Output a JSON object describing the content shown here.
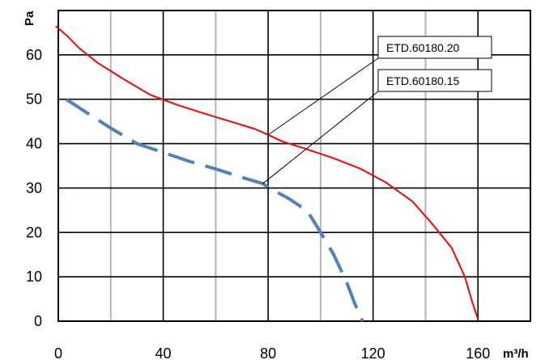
{
  "chart_data": {
    "type": "line",
    "xlabel": "m³/h",
    "ylabel": "Pa",
    "xlim": [
      0,
      180
    ],
    "ylim": [
      0,
      70
    ],
    "x_ticks": [
      0,
      40,
      80,
      120,
      160
    ],
    "y_ticks": [
      0,
      10,
      20,
      30,
      40,
      50,
      60
    ],
    "x_minor_ticks": [
      20,
      60,
      100,
      140
    ],
    "grid": true,
    "series": [
      {
        "name": "ETD.60180.20",
        "color": "#ff0000",
        "style": "solid",
        "label_anchor": [
          80,
          42
        ],
        "x": [
          -1,
          3,
          8,
          15,
          25,
          35,
          45,
          55,
          65,
          75,
          80,
          85,
          95,
          105,
          115,
          125,
          135,
          143,
          150,
          155,
          158,
          160
        ],
        "y": [
          66.5,
          64.5,
          61.5,
          58.2,
          54.5,
          51.0,
          48.8,
          46.9,
          45.1,
          43.3,
          42.0,
          40.6,
          38.7,
          36.7,
          34.4,
          31.2,
          27.0,
          21.6,
          16.5,
          10.0,
          4.0,
          0.5
        ]
      },
      {
        "name": "ETD.60180.15",
        "color": "#4f81bd",
        "style": "dashed",
        "label_anchor": [
          78,
          31
        ],
        "x": [
          3,
          10,
          20,
          30,
          40,
          50,
          60,
          70,
          78,
          82,
          88,
          95,
          100,
          105,
          110,
          113,
          116
        ],
        "y": [
          50.0,
          47.3,
          43.5,
          40.0,
          38.0,
          36.0,
          34.3,
          32.4,
          31.0,
          29.5,
          27.6,
          24.8,
          20.0,
          15.0,
          8.7,
          4.0,
          0
        ]
      }
    ]
  }
}
